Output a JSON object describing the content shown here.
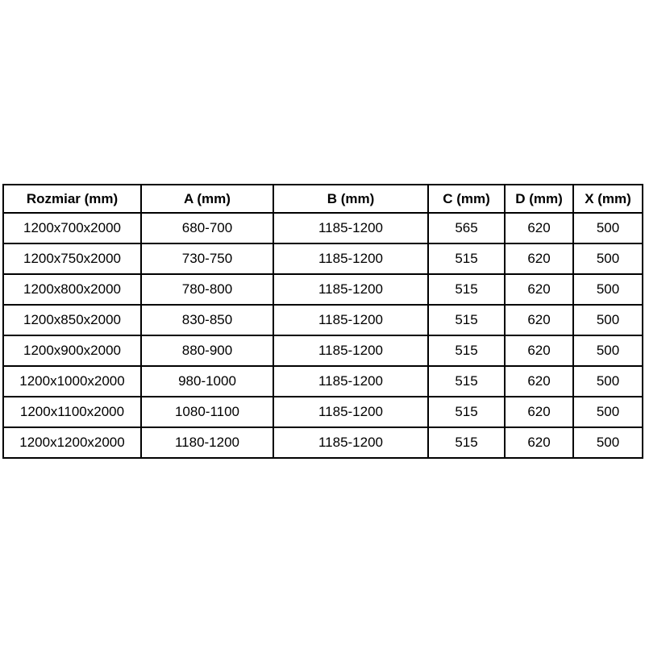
{
  "colors": {
    "background": "#ffffff",
    "border": "#000000",
    "text": "#000000"
  },
  "table": {
    "headers": [
      "Rozmiar (mm)",
      "A (mm)",
      "B (mm)",
      "C (mm)",
      "D (mm)",
      "X (mm)"
    ],
    "rows": [
      [
        "1200x700x2000",
        "680-700",
        "1185-1200",
        "565",
        "620",
        "500"
      ],
      [
        "1200x750x2000",
        "730-750",
        "1185-1200",
        "515",
        "620",
        "500"
      ],
      [
        "1200x800x2000",
        "780-800",
        "1185-1200",
        "515",
        "620",
        "500"
      ],
      [
        "1200x850x2000",
        "830-850",
        "1185-1200",
        "515",
        "620",
        "500"
      ],
      [
        "1200x900x2000",
        "880-900",
        "1185-1200",
        "515",
        "620",
        "500"
      ],
      [
        "1200x1000x2000",
        "980-1000",
        "1185-1200",
        "515",
        "620",
        "500"
      ],
      [
        "1200x1100x2000",
        "1080-1100",
        "1185-1200",
        "515",
        "620",
        "500"
      ],
      [
        "1200x1200x2000",
        "1180-1200",
        "1185-1200",
        "515",
        "620",
        "500"
      ]
    ]
  }
}
